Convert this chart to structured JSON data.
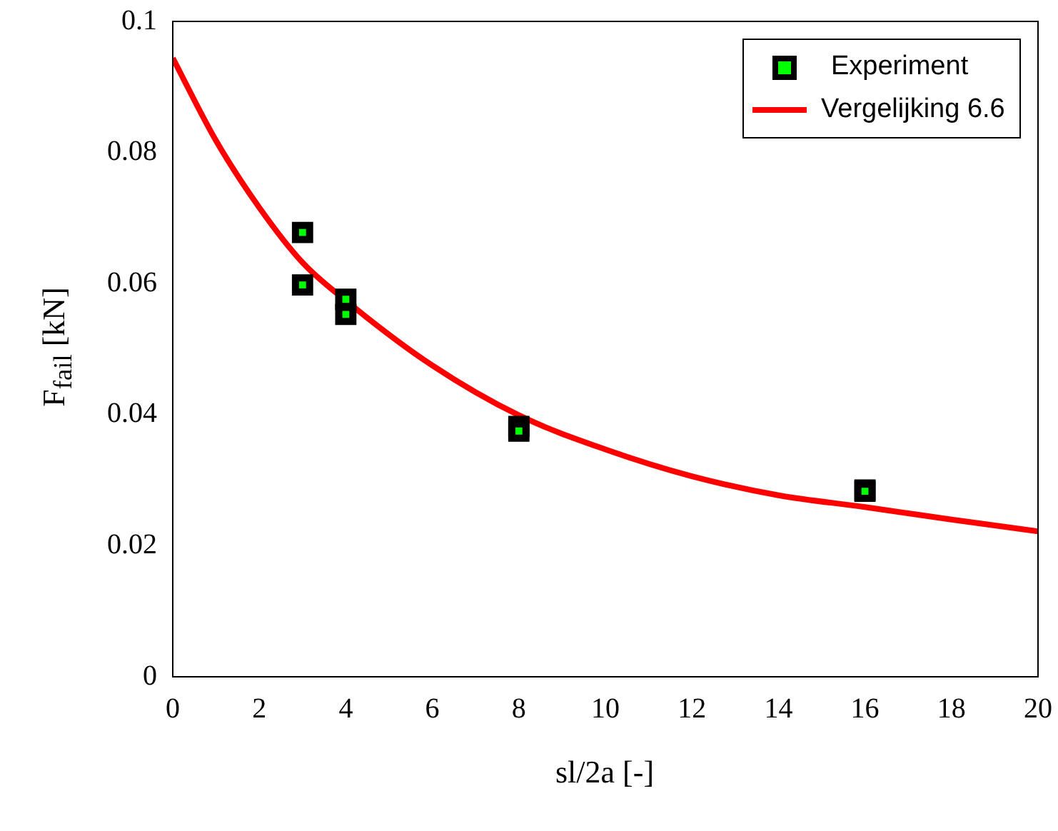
{
  "chart_data": {
    "type": "scatter",
    "xlabel": "sl/2a [-]",
    "ylabel": "F$_{fail}$ [kN]",
    "xlim": [
      0,
      20
    ],
    "xticks": [
      0,
      2,
      4,
      6,
      8,
      10,
      12,
      14,
      16,
      18,
      20
    ],
    "ylim": [
      0,
      0.1
    ],
    "yticks": [
      0,
      0.02,
      0.04,
      0.06,
      0.08,
      0.1
    ],
    "grid": false,
    "legend": "top right",
    "series": [
      {
        "name": "Experiment",
        "color": "#000000",
        "marker": "square",
        "x": [
          3,
          3,
          4,
          4,
          8,
          8,
          16,
          16
        ],
        "values": [
          0.0678,
          0.0598,
          0.0576,
          0.0553,
          0.0382,
          0.0375,
          0.0285,
          0.0283
        ]
      },
      {
        "name": "Vergelijking 6.6",
        "type": "line",
        "color": "#ff0000",
        "marker": "none",
        "x": [
          0,
          1,
          2,
          3,
          4,
          6,
          8,
          10,
          12,
          14,
          16,
          18,
          20
        ],
        "values": [
          0.0944,
          0.0818,
          0.0716,
          0.0632,
          0.0574,
          0.0475,
          0.0399,
          0.0347,
          0.0306,
          0.0277,
          0.0259,
          0.024,
          0.0222
        ]
      }
    ]
  }
}
